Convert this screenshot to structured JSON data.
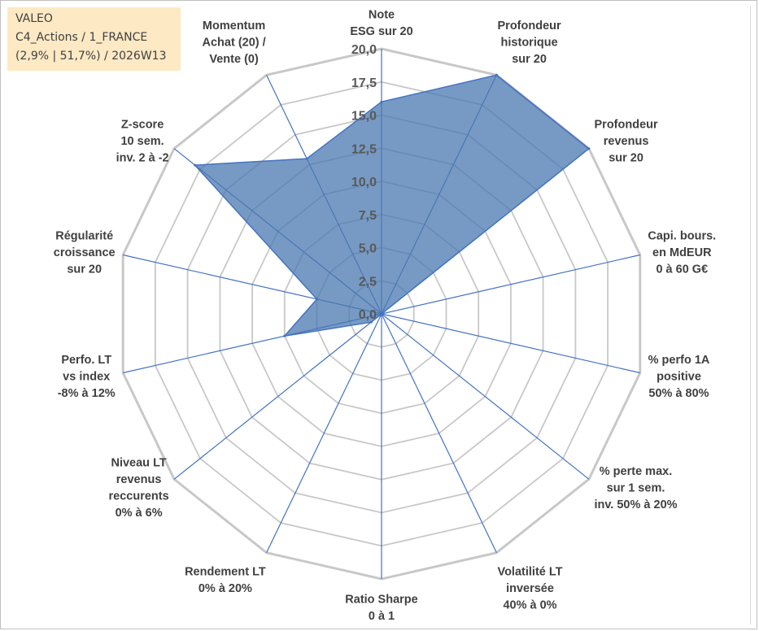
{
  "info_box": {
    "line1": "VALEO",
    "line2": "C4_Actions / 1_FRANCE",
    "line3": "(2,9% | 51,7%) / 2026W13"
  },
  "colors": {
    "fill": "#4a78b0",
    "stroke": "#4472c4",
    "grid": "#c8c8c8",
    "spoke": "#4472c4",
    "info_bg": "#fde9c4"
  },
  "chart_data": {
    "type": "radar",
    "title": "",
    "rmin": 0,
    "rmax": 20,
    "ticks": [
      "0,0",
      "2,5",
      "5,0",
      "7,5",
      "10,0",
      "12,5",
      "15,0",
      "17,5",
      "20,0"
    ],
    "grid": true,
    "categories": [
      [
        "Note",
        "ESG sur 20"
      ],
      [
        "Profondeur",
        "historique",
        "sur 20"
      ],
      [
        "Profondeur",
        "revenus",
        "sur 20"
      ],
      [
        "Capi. bours.",
        "en MdEUR",
        "0 à 60 G€"
      ],
      [
        "% perfo 1A",
        "positive",
        "50% à 80%"
      ],
      [
        "% perte max.",
        "sur 1 sem.",
        "inv. 50% à 20%"
      ],
      [
        "Volatilité LT",
        "inversée",
        "40% à 0%"
      ],
      [
        "Ratio Sharpe",
        "0 à 1"
      ],
      [
        "Rendement LT",
        "0% à 20%"
      ],
      [
        "Niveau LT",
        "revenus",
        "reccurents",
        "0% à 6%"
      ],
      [
        "Perfo. LT",
        "vs index",
        "-8% à 12%"
      ],
      [
        "Régularité",
        "croissance",
        "sur 20"
      ],
      [
        "Z-score",
        "10 sem.",
        "inv. 2 à -2"
      ],
      [
        "Momentum",
        "Achat (20) /",
        "Vente (0)"
      ]
    ],
    "values": [
      16.0,
      20.0,
      20.0,
      0.0,
      0.0,
      0.0,
      0.0,
      0.0,
      0.0,
      1.0,
      7.5,
      5.0,
      18.0,
      13.0
    ]
  }
}
